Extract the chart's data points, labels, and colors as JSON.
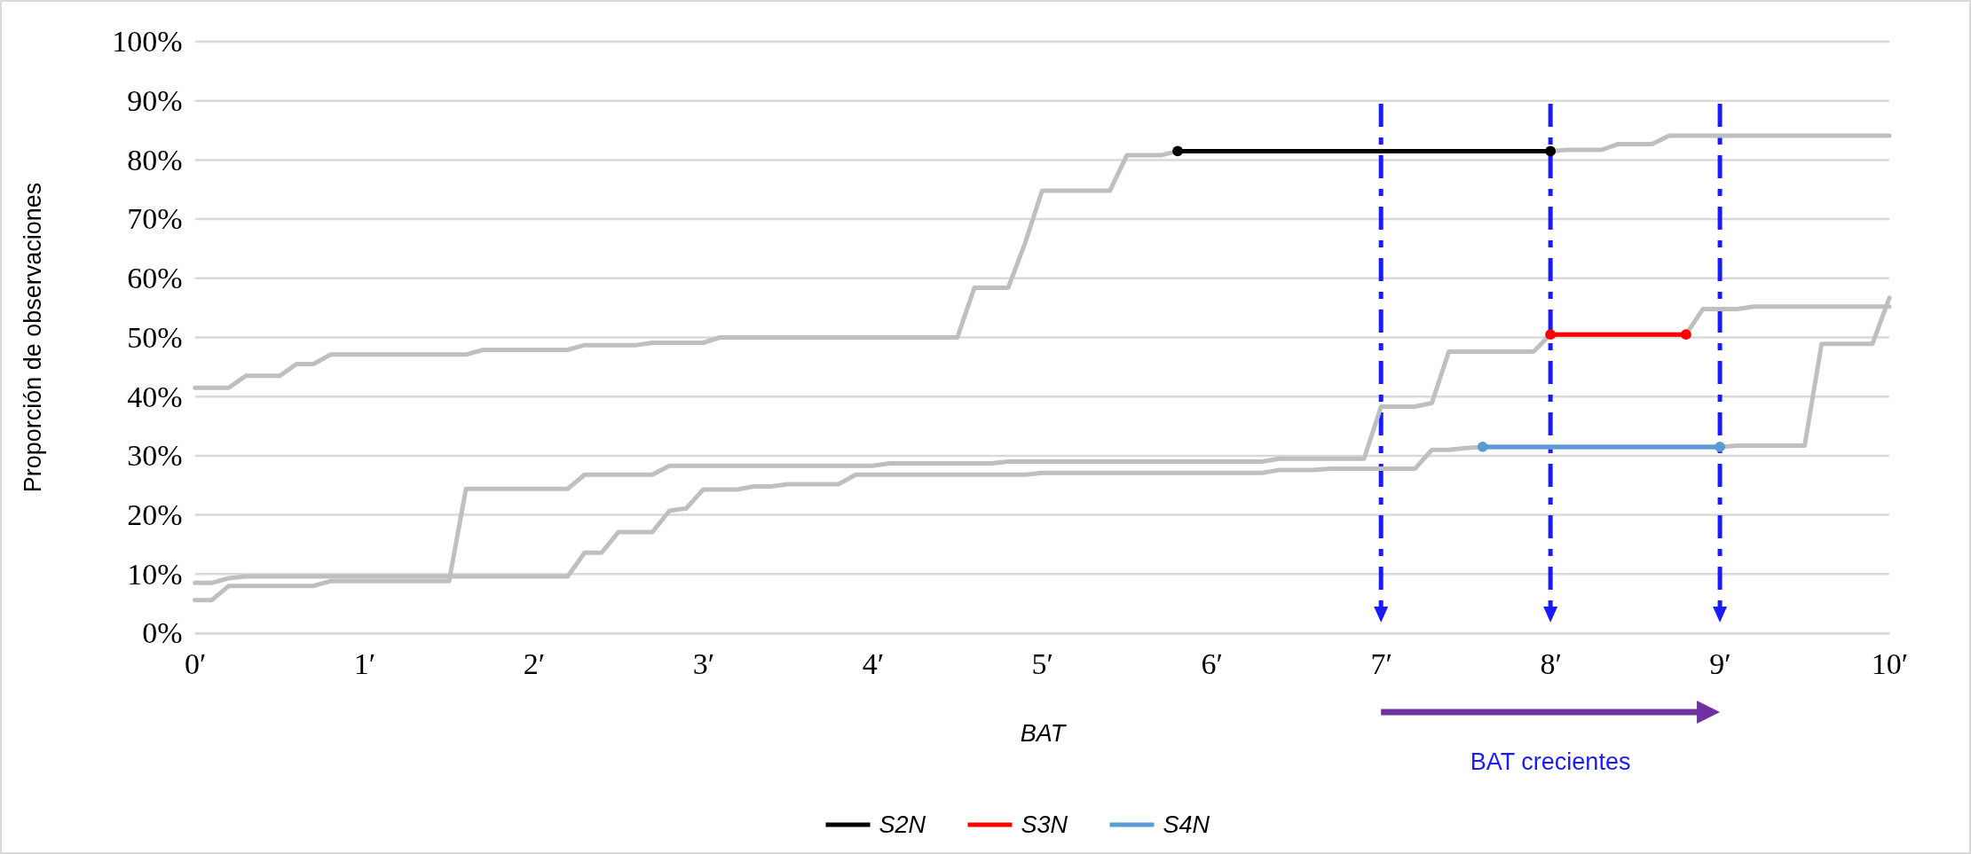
{
  "chart_data": {
    "type": "line",
    "xlabel": "BAT",
    "ylabel": "Proporción de observaciones",
    "xlim": [
      0,
      10
    ],
    "xticks": [
      {
        "value": 0,
        "label": "0′"
      },
      {
        "value": 1,
        "label": "1′"
      },
      {
        "value": 2,
        "label": "2′"
      },
      {
        "value": 3,
        "label": "3′"
      },
      {
        "value": 4,
        "label": "4′"
      },
      {
        "value": 5,
        "label": "5′"
      },
      {
        "value": 6,
        "label": "6′"
      },
      {
        "value": 7,
        "label": "7′"
      },
      {
        "value": 8,
        "label": "8′"
      },
      {
        "value": 9,
        "label": "9′"
      },
      {
        "value": 10,
        "label": "10′"
      }
    ],
    "ylim": [
      0,
      100
    ],
    "yticks": [
      {
        "value": 0,
        "label": "0%"
      },
      {
        "value": 10,
        "label": "10%"
      },
      {
        "value": 20,
        "label": "20%"
      },
      {
        "value": 30,
        "label": "30%"
      },
      {
        "value": 40,
        "label": "40%"
      },
      {
        "value": 50,
        "label": "50%"
      },
      {
        "value": 60,
        "label": "60%"
      },
      {
        "value": 70,
        "label": "70%"
      },
      {
        "value": 80,
        "label": "80%"
      },
      {
        "value": 90,
        "label": "90%"
      },
      {
        "value": 100,
        "label": "100%"
      }
    ],
    "grid": "y",
    "legend": "bottom",
    "series": [
      {
        "color": "#bfbfbf",
        "marker": "none",
        "x": [
          0,
          0.2,
          0.3,
          0.5,
          0.6,
          0.7,
          0.8,
          1.6,
          1.7,
          2.2,
          2.3,
          2.6,
          2.7,
          3.0,
          3.1,
          4.5,
          4.6,
          4.8,
          4.9,
          5.0,
          5.4,
          5.5,
          5.7,
          5.8,
          8.0,
          8.1,
          8.3,
          8.4,
          8.6,
          8.7,
          10
        ],
        "values": [
          41.5,
          41.5,
          43.5,
          43.5,
          45.5,
          45.5,
          47.1,
          47.1,
          47.9,
          47.9,
          48.7,
          48.7,
          49.1,
          49.1,
          50,
          50,
          58.4,
          58.4,
          66,
          74.8,
          74.8,
          80.8,
          80.8,
          81.5,
          81.5,
          81.7,
          81.7,
          82.7,
          82.7,
          84.1,
          84.1
        ]
      },
      {
        "color": "#bfbfbf",
        "marker": "none",
        "x": [
          0,
          0.1,
          0.2,
          0.7,
          0.8,
          1.5,
          1.6,
          2.2,
          2.3,
          2.7,
          2.8,
          4.0,
          4.1,
          4.7,
          4.8,
          6.3,
          6.4,
          6.9,
          7.0,
          7.2,
          7.3,
          7.4,
          7.9,
          8.0,
          8.8,
          8.9,
          9.1,
          9.2,
          10
        ],
        "values": [
          5.6,
          5.6,
          8.0,
          8.0,
          8.8,
          8.8,
          24.4,
          24.4,
          26.8,
          26.8,
          28.3,
          28.3,
          28.7,
          28.7,
          29.0,
          29.0,
          29.5,
          29.5,
          38.3,
          38.3,
          38.9,
          47.6,
          47.6,
          50.5,
          50.5,
          54.8,
          54.8,
          55.2,
          55.2
        ]
      },
      {
        "color": "#bfbfbf",
        "marker": "none",
        "x": [
          0,
          0.1,
          0.2,
          0.3,
          2.2,
          2.3,
          2.4,
          2.5,
          2.7,
          2.8,
          2.9,
          3.0,
          3.2,
          3.3,
          3.4,
          3.5,
          3.8,
          3.9,
          4.9,
          5.0,
          6.3,
          6.4,
          6.6,
          6.7,
          7.2,
          7.3,
          7.4,
          7.5,
          7.6,
          9.0,
          9.1,
          9.5,
          9.6,
          9.9,
          10
        ],
        "values": [
          8.5,
          8.5,
          9.3,
          9.6,
          9.6,
          13.6,
          13.6,
          17.1,
          17.1,
          20.7,
          21.1,
          24.3,
          24.3,
          24.8,
          24.8,
          25.2,
          25.2,
          26.8,
          26.8,
          27.1,
          27.1,
          27.6,
          27.6,
          27.8,
          27.8,
          31.0,
          31.0,
          31.3,
          31.5,
          31.5,
          31.7,
          31.7,
          48.9,
          48.9,
          56.7
        ]
      },
      {
        "name": "S2N",
        "color": "#000000",
        "marker": "circle",
        "x": [
          5.8,
          8.0
        ],
        "values": [
          81.5,
          81.5
        ]
      },
      {
        "name": "S3N",
        "color": "#ff0000",
        "marker": "circle",
        "x": [
          8.0,
          8.8
        ],
        "values": [
          50.5,
          50.5
        ]
      },
      {
        "name": "S4N",
        "color": "#5b9bd5",
        "marker": "circle",
        "x": [
          7.6,
          9.0
        ],
        "values": [
          31.5,
          31.5
        ]
      }
    ],
    "ref_lines": [
      {
        "axis": "x",
        "value": 7,
        "color": "#1a1aff",
        "line_style": "dashed"
      },
      {
        "axis": "x",
        "value": 8,
        "color": "#1a1aff",
        "line_style": "dashed"
      },
      {
        "axis": "x",
        "value": 9,
        "color": "#1a1aff",
        "line_style": "dashed"
      }
    ],
    "annotations": [
      "BAT crecientes"
    ]
  }
}
